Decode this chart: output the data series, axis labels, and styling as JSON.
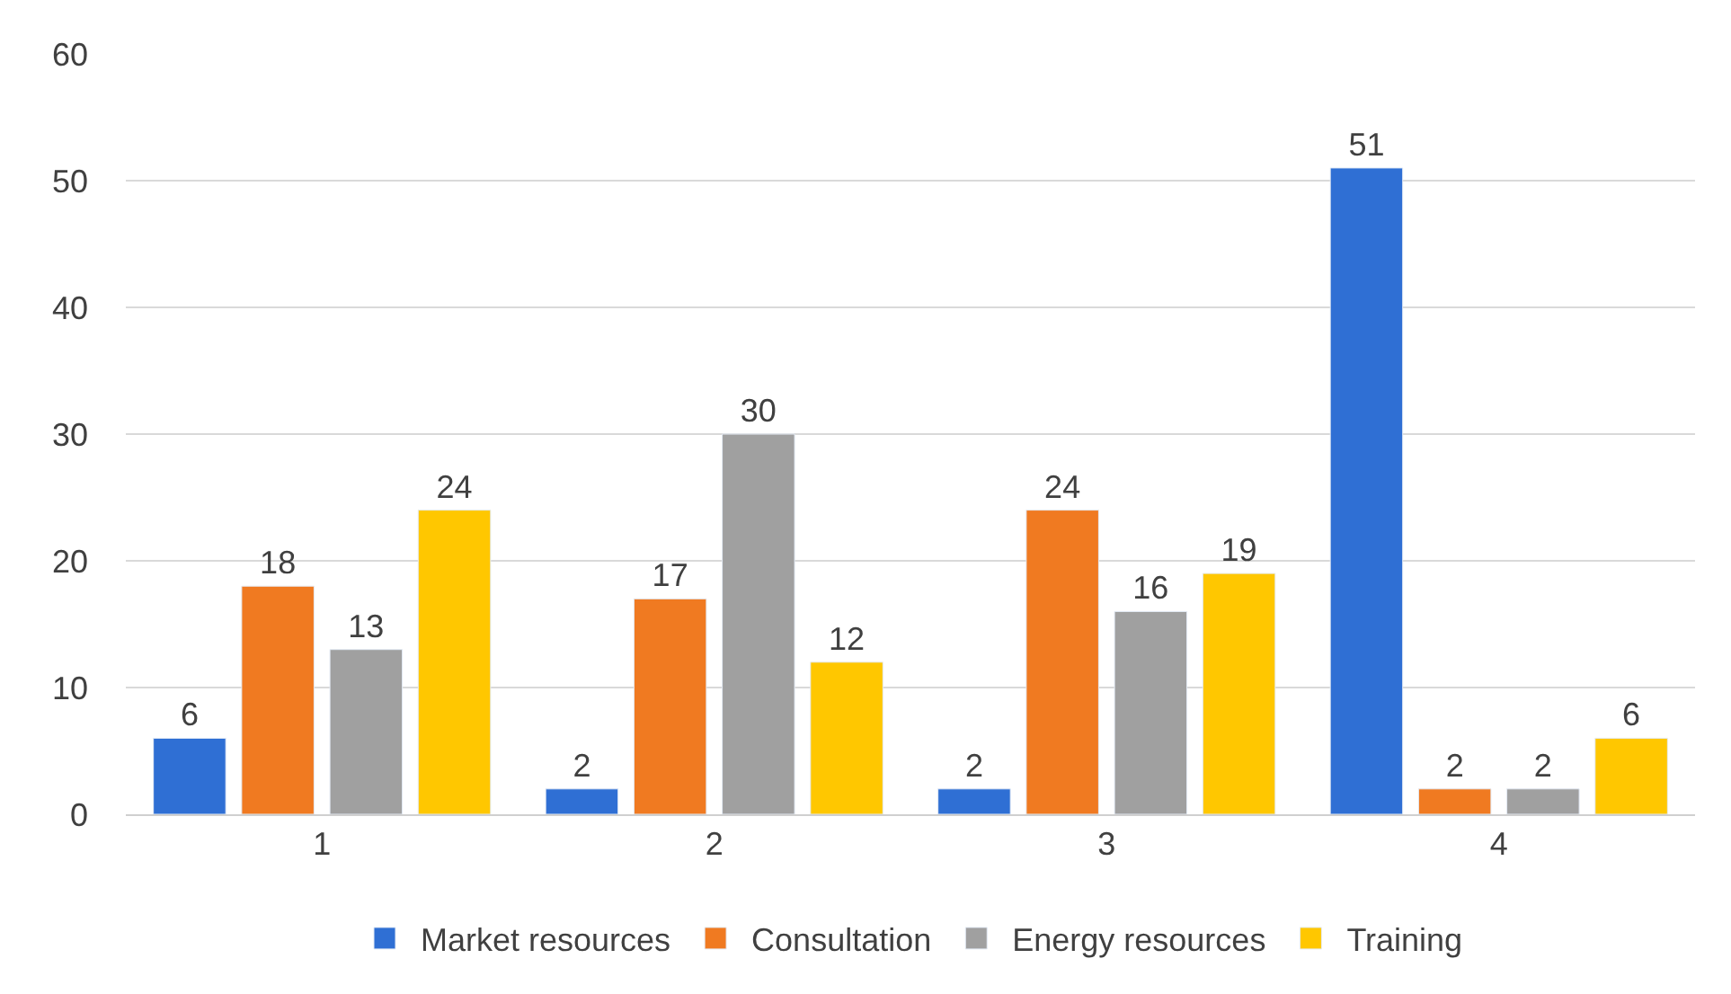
{
  "chart_data": {
    "type": "bar",
    "categories": [
      "1",
      "2",
      "3",
      "4"
    ],
    "series": [
      {
        "name": "Market resources",
        "color": "#2f6fd4",
        "values": [
          6,
          2,
          2,
          51
        ]
      },
      {
        "name": "Consultation",
        "color": "#f07a21",
        "values": [
          18,
          17,
          24,
          2
        ]
      },
      {
        "name": "Energy resources",
        "color": "#a0a0a0",
        "values": [
          13,
          30,
          16,
          2
        ]
      },
      {
        "name": "Training",
        "color": "#ffc700",
        "values": [
          24,
          12,
          19,
          6
        ]
      }
    ],
    "ylim": [
      0,
      60
    ],
    "yticks": [
      0,
      10,
      20,
      30,
      40,
      50,
      60
    ],
    "grid": "y",
    "legend": "bottom",
    "data_labels": true
  }
}
